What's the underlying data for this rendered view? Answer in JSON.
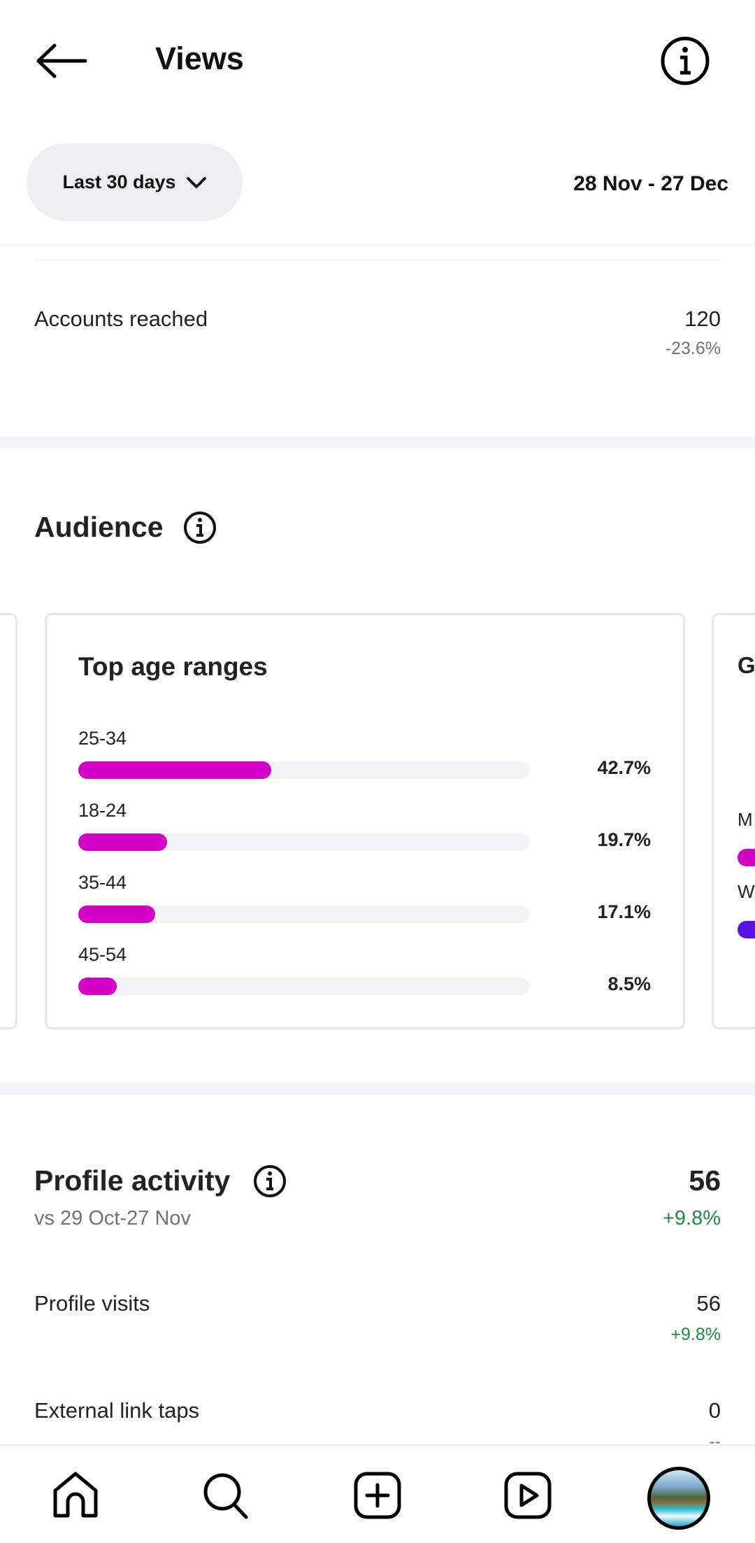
{
  "header": {
    "title": "Views",
    "back_icon": "arrow-left-icon",
    "info_icon": "info-icon"
  },
  "filter": {
    "range_label": "Last 30 days",
    "date_range": "28 Nov - 27 Dec"
  },
  "accounts_reached": {
    "label": "Accounts reached",
    "value": "120",
    "change": "-23.6%"
  },
  "audience": {
    "title": "Audience",
    "age_card": {
      "title": "Top age ranges",
      "bar_color": "#d300c5",
      "rows": [
        {
          "label": "25-34",
          "pct": "42.7%",
          "fraction": 0.427
        },
        {
          "label": "18-24",
          "pct": "19.7%",
          "fraction": 0.197
        },
        {
          "label": "35-44",
          "pct": "17.1%",
          "fraction": 0.171
        },
        {
          "label": "45-54",
          "pct": "8.5%",
          "fraction": 0.085
        }
      ]
    },
    "next_card": {
      "title_visible": "G",
      "row1_visible": "M",
      "row2_visible": "W",
      "row1_color": "#d300c5",
      "row2_color": "#5a12e0"
    }
  },
  "profile_activity": {
    "title": "Profile activity",
    "compare": "vs 29 Oct-27 Nov",
    "total": "56",
    "total_change": "+9.8%",
    "items": [
      {
        "label": "Profile visits",
        "value": "56",
        "change": "+9.8%"
      },
      {
        "label": "External link taps",
        "value": "0",
        "change": "--"
      }
    ]
  },
  "nav": {
    "items": [
      "home-icon",
      "search-icon",
      "create-icon",
      "reels-icon",
      "profile-avatar"
    ]
  },
  "colors": {
    "positive": "#1f8b3f",
    "muted": "#737373",
    "accent": "#d300c5"
  }
}
